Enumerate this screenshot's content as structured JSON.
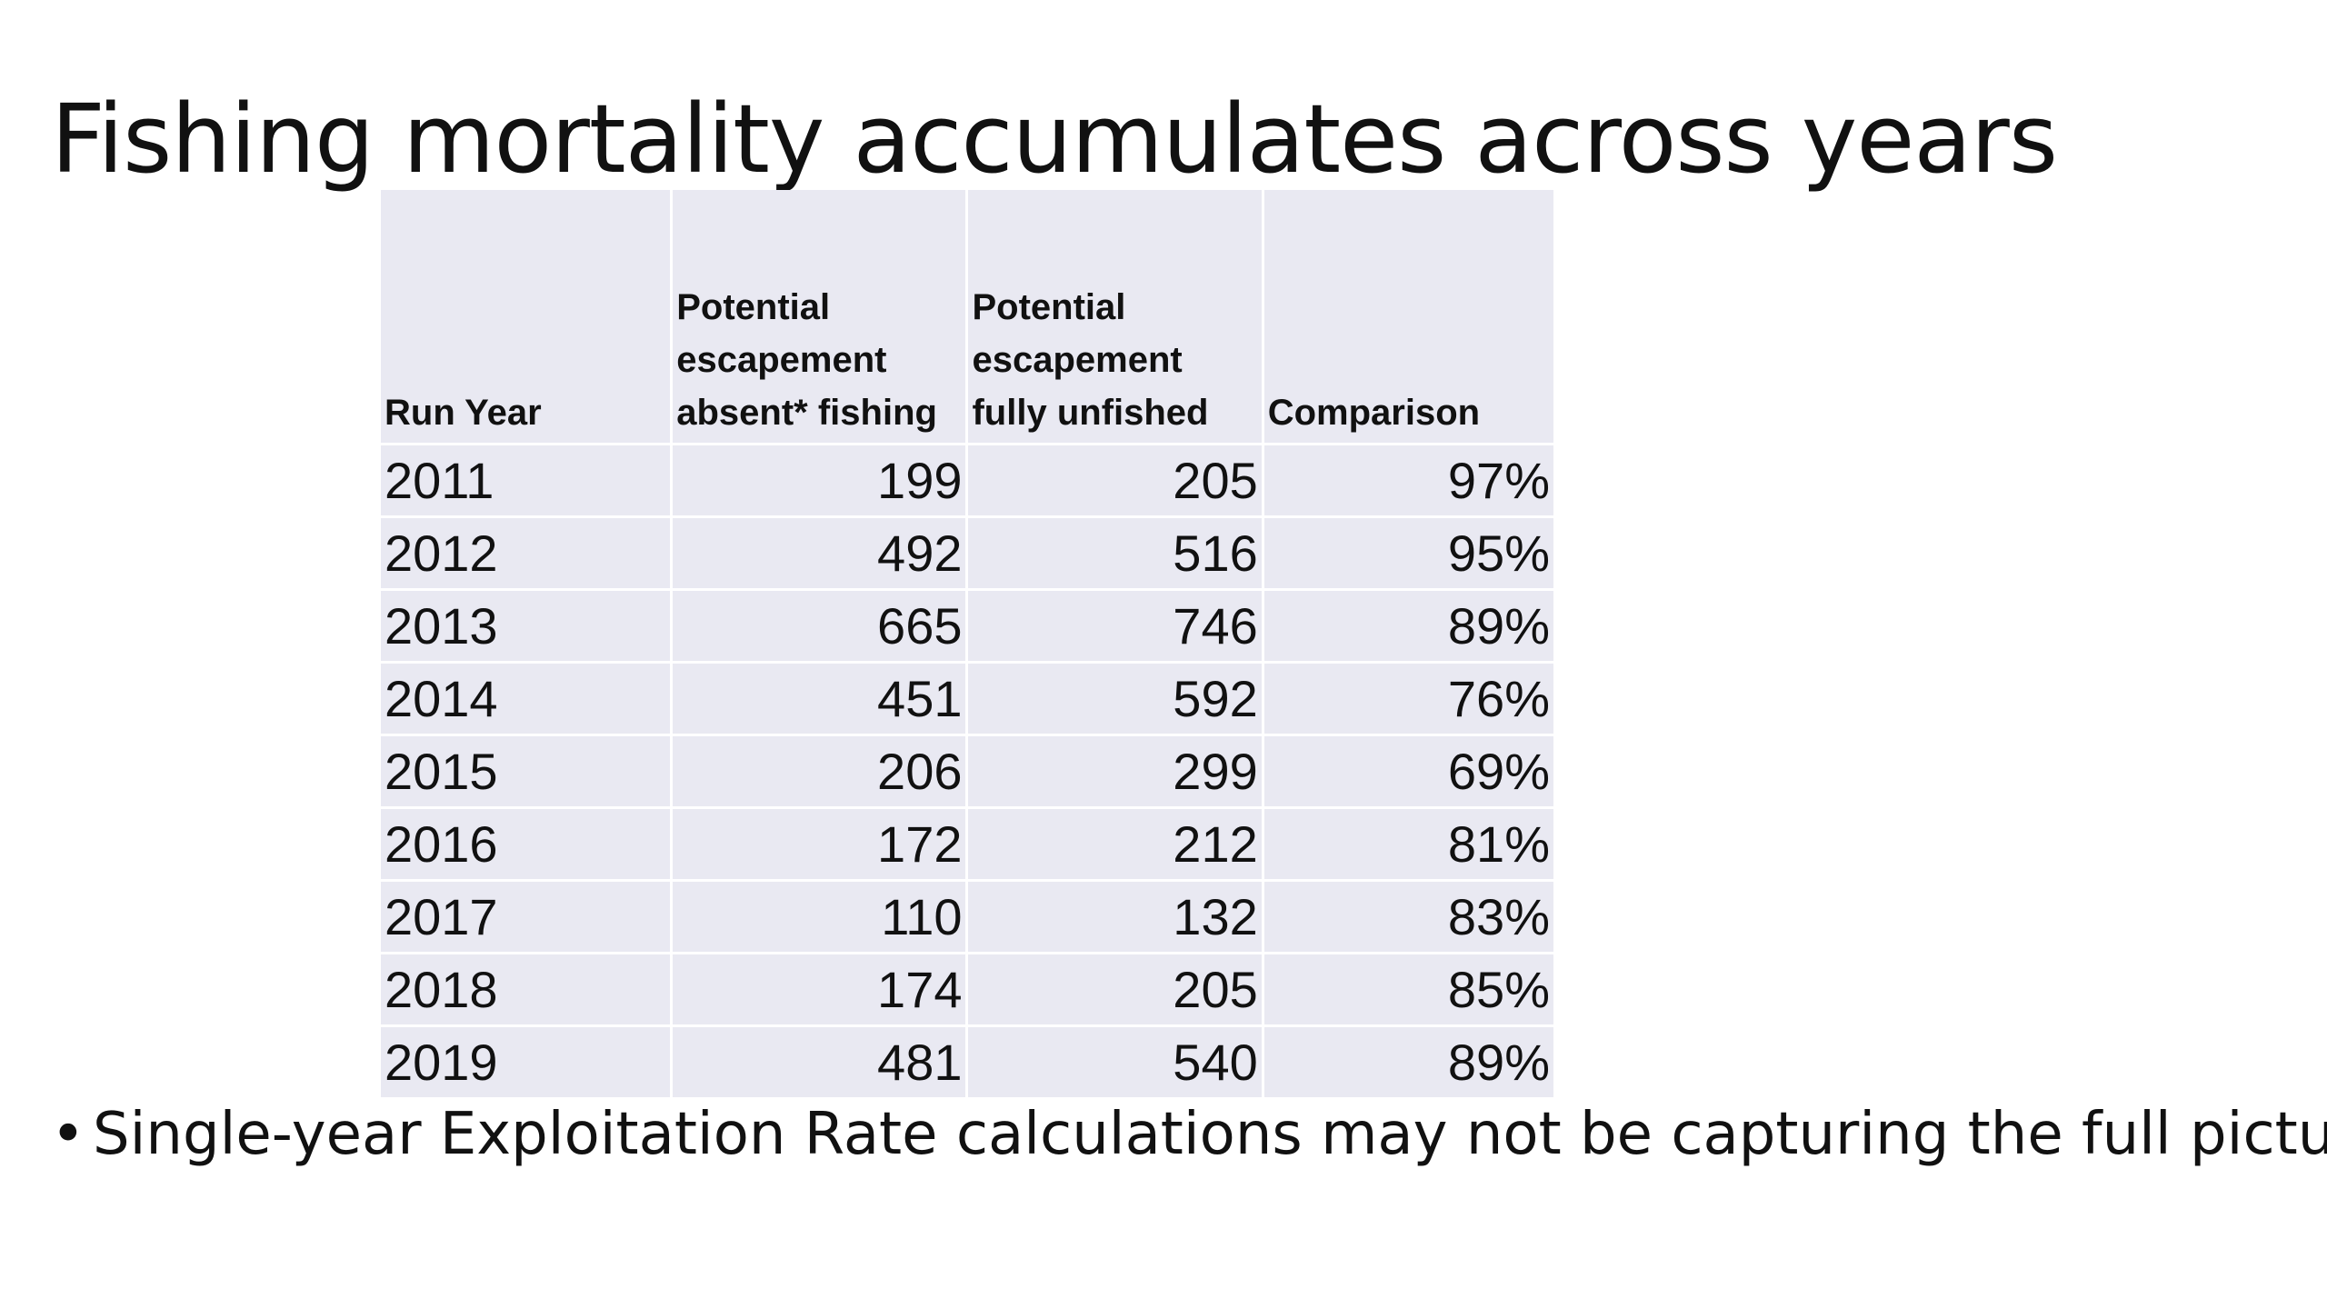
{
  "title": "Fishing mortality accumulates across years",
  "table": {
    "headers": [
      "Run Year",
      "Potential escapement absent* fishing",
      "Potential escapement fully unfished",
      "Comparison"
    ],
    "rows": [
      [
        "2011",
        "199",
        "205",
        "97%"
      ],
      [
        "2012",
        "492",
        "516",
        "95%"
      ],
      [
        "2013",
        "665",
        "746",
        "89%"
      ],
      [
        "2014",
        "451",
        "592",
        "76%"
      ],
      [
        "2015",
        "206",
        "299",
        "69%"
      ],
      [
        "2016",
        "172",
        "212",
        "81%"
      ],
      [
        "2017",
        "110",
        "132",
        "83%"
      ],
      [
        "2018",
        "174",
        "205",
        "85%"
      ],
      [
        "2019",
        "481",
        "540",
        "89%"
      ]
    ]
  },
  "bullets": [
    {
      "marker": "•",
      "text": "Single-year Exploitation Rate calculations may not be capturing the full picture"
    }
  ]
}
